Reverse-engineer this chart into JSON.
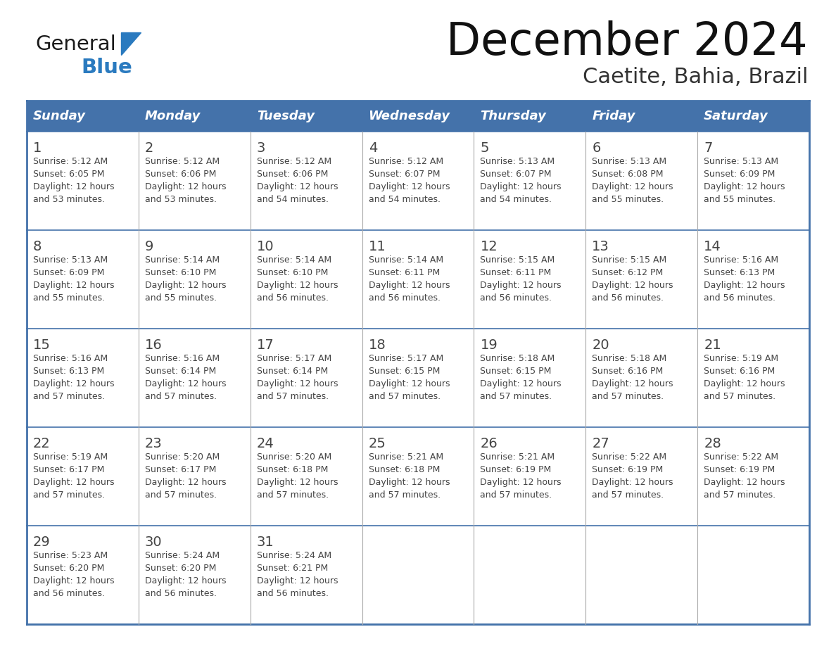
{
  "title": "December 2024",
  "subtitle": "Caetite, Bahia, Brazil",
  "header_color": "#4472aa",
  "header_text_color": "#ffffff",
  "border_color": "#4472aa",
  "row_sep_color": "#4472aa",
  "col_sep_color": "#aaaaaa",
  "text_color": "#444444",
  "days_of_week": [
    "Sunday",
    "Monday",
    "Tuesday",
    "Wednesday",
    "Thursday",
    "Friday",
    "Saturday"
  ],
  "logo_general_color": "#1a1a1a",
  "logo_blue_color": "#2a7abf",
  "weeks": [
    [
      {
        "day": "1",
        "sunrise": "5:12 AM",
        "sunset": "6:05 PM",
        "daylight_hours": "12 hours",
        "daylight_mins": "and 53 minutes."
      },
      {
        "day": "2",
        "sunrise": "5:12 AM",
        "sunset": "6:06 PM",
        "daylight_hours": "12 hours",
        "daylight_mins": "and 53 minutes."
      },
      {
        "day": "3",
        "sunrise": "5:12 AM",
        "sunset": "6:06 PM",
        "daylight_hours": "12 hours",
        "daylight_mins": "and 54 minutes."
      },
      {
        "day": "4",
        "sunrise": "5:12 AM",
        "sunset": "6:07 PM",
        "daylight_hours": "12 hours",
        "daylight_mins": "and 54 minutes."
      },
      {
        "day": "5",
        "sunrise": "5:13 AM",
        "sunset": "6:07 PM",
        "daylight_hours": "12 hours",
        "daylight_mins": "and 54 minutes."
      },
      {
        "day": "6",
        "sunrise": "5:13 AM",
        "sunset": "6:08 PM",
        "daylight_hours": "12 hours",
        "daylight_mins": "and 55 minutes."
      },
      {
        "day": "7",
        "sunrise": "5:13 AM",
        "sunset": "6:09 PM",
        "daylight_hours": "12 hours",
        "daylight_mins": "and 55 minutes."
      }
    ],
    [
      {
        "day": "8",
        "sunrise": "5:13 AM",
        "sunset": "6:09 PM",
        "daylight_hours": "12 hours",
        "daylight_mins": "and 55 minutes."
      },
      {
        "day": "9",
        "sunrise": "5:14 AM",
        "sunset": "6:10 PM",
        "daylight_hours": "12 hours",
        "daylight_mins": "and 55 minutes."
      },
      {
        "day": "10",
        "sunrise": "5:14 AM",
        "sunset": "6:10 PM",
        "daylight_hours": "12 hours",
        "daylight_mins": "and 56 minutes."
      },
      {
        "day": "11",
        "sunrise": "5:14 AM",
        "sunset": "6:11 PM",
        "daylight_hours": "12 hours",
        "daylight_mins": "and 56 minutes."
      },
      {
        "day": "12",
        "sunrise": "5:15 AM",
        "sunset": "6:11 PM",
        "daylight_hours": "12 hours",
        "daylight_mins": "and 56 minutes."
      },
      {
        "day": "13",
        "sunrise": "5:15 AM",
        "sunset": "6:12 PM",
        "daylight_hours": "12 hours",
        "daylight_mins": "and 56 minutes."
      },
      {
        "day": "14",
        "sunrise": "5:16 AM",
        "sunset": "6:13 PM",
        "daylight_hours": "12 hours",
        "daylight_mins": "and 56 minutes."
      }
    ],
    [
      {
        "day": "15",
        "sunrise": "5:16 AM",
        "sunset": "6:13 PM",
        "daylight_hours": "12 hours",
        "daylight_mins": "and 57 minutes."
      },
      {
        "day": "16",
        "sunrise": "5:16 AM",
        "sunset": "6:14 PM",
        "daylight_hours": "12 hours",
        "daylight_mins": "and 57 minutes."
      },
      {
        "day": "17",
        "sunrise": "5:17 AM",
        "sunset": "6:14 PM",
        "daylight_hours": "12 hours",
        "daylight_mins": "and 57 minutes."
      },
      {
        "day": "18",
        "sunrise": "5:17 AM",
        "sunset": "6:15 PM",
        "daylight_hours": "12 hours",
        "daylight_mins": "and 57 minutes."
      },
      {
        "day": "19",
        "sunrise": "5:18 AM",
        "sunset": "6:15 PM",
        "daylight_hours": "12 hours",
        "daylight_mins": "and 57 minutes."
      },
      {
        "day": "20",
        "sunrise": "5:18 AM",
        "sunset": "6:16 PM",
        "daylight_hours": "12 hours",
        "daylight_mins": "and 57 minutes."
      },
      {
        "day": "21",
        "sunrise": "5:19 AM",
        "sunset": "6:16 PM",
        "daylight_hours": "12 hours",
        "daylight_mins": "and 57 minutes."
      }
    ],
    [
      {
        "day": "22",
        "sunrise": "5:19 AM",
        "sunset": "6:17 PM",
        "daylight_hours": "12 hours",
        "daylight_mins": "and 57 minutes."
      },
      {
        "day": "23",
        "sunrise": "5:20 AM",
        "sunset": "6:17 PM",
        "daylight_hours": "12 hours",
        "daylight_mins": "and 57 minutes."
      },
      {
        "day": "24",
        "sunrise": "5:20 AM",
        "sunset": "6:18 PM",
        "daylight_hours": "12 hours",
        "daylight_mins": "and 57 minutes."
      },
      {
        "day": "25",
        "sunrise": "5:21 AM",
        "sunset": "6:18 PM",
        "daylight_hours": "12 hours",
        "daylight_mins": "and 57 minutes."
      },
      {
        "day": "26",
        "sunrise": "5:21 AM",
        "sunset": "6:19 PM",
        "daylight_hours": "12 hours",
        "daylight_mins": "and 57 minutes."
      },
      {
        "day": "27",
        "sunrise": "5:22 AM",
        "sunset": "6:19 PM",
        "daylight_hours": "12 hours",
        "daylight_mins": "and 57 minutes."
      },
      {
        "day": "28",
        "sunrise": "5:22 AM",
        "sunset": "6:19 PM",
        "daylight_hours": "12 hours",
        "daylight_mins": "and 57 minutes."
      }
    ],
    [
      {
        "day": "29",
        "sunrise": "5:23 AM",
        "sunset": "6:20 PM",
        "daylight_hours": "12 hours",
        "daylight_mins": "and 56 minutes."
      },
      {
        "day": "30",
        "sunrise": "5:24 AM",
        "sunset": "6:20 PM",
        "daylight_hours": "12 hours",
        "daylight_mins": "and 56 minutes."
      },
      {
        "day": "31",
        "sunrise": "5:24 AM",
        "sunset": "6:21 PM",
        "daylight_hours": "12 hours",
        "daylight_mins": "and 56 minutes."
      },
      null,
      null,
      null,
      null
    ]
  ]
}
